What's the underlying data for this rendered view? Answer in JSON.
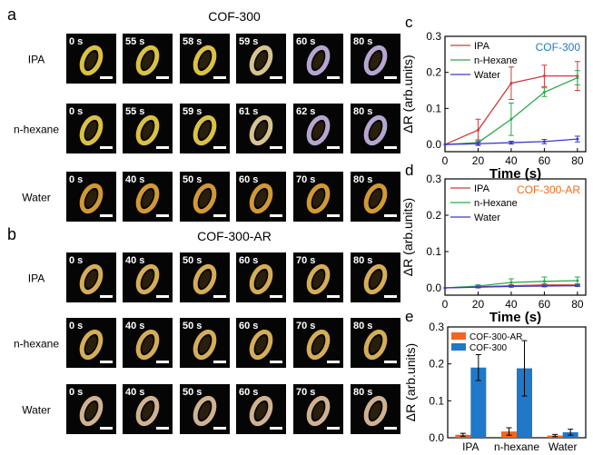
{
  "panel_labels": {
    "a": "a",
    "b": "b",
    "c": "c",
    "d": "d",
    "e": "e"
  },
  "microscopy": {
    "cof300": {
      "title": "COF-300",
      "rows": [
        {
          "label": "IPA",
          "times": [
            "0 s",
            "55 s",
            "58 s",
            "59 s",
            "60 s",
            "80 s"
          ],
          "tint": [
            "#f2d64a",
            "#f2d64a",
            "#f2d64a",
            "#efd8a0",
            "#c9b8e6",
            "#c9b8e6"
          ]
        },
        {
          "label": "n-hexane",
          "times": [
            "0 s",
            "55 s",
            "59 s",
            "61 s",
            "62 s",
            "80 s"
          ],
          "tint": [
            "#f2d64a",
            "#f2d64a",
            "#f2d64a",
            "#efd8a0",
            "#c9b8e6",
            "#c9b8e6"
          ]
        },
        {
          "label": "Water",
          "times": [
            "0 s",
            "40 s",
            "50 s",
            "60 s",
            "70 s",
            "80 s"
          ],
          "tint": [
            "#e8a83a",
            "#e8a83a",
            "#e8a83a",
            "#e8a83a",
            "#e8a83a",
            "#e8a83a"
          ]
        }
      ]
    },
    "cof300ar": {
      "title": "COF-300-AR",
      "rows": [
        {
          "label": "IPA",
          "times": [
            "0 s",
            "40 s",
            "50 s",
            "60 s",
            "70 s",
            "80 s"
          ],
          "tint": [
            "#ecc060",
            "#ecc060",
            "#ecc060",
            "#ecc060",
            "#ecc060",
            "#ecc060"
          ]
        },
        {
          "label": "n-hexane",
          "times": [
            "0 s",
            "40 s",
            "50 s",
            "60 s",
            "70 s",
            "80 s"
          ],
          "tint": [
            "#ecc060",
            "#ecc060",
            "#ecc060",
            "#ecc060",
            "#ecc060",
            "#ecc060"
          ]
        },
        {
          "label": "Water",
          "times": [
            "0 s",
            "40 s",
            "50 s",
            "60 s",
            "70 s",
            "80 s"
          ],
          "tint": [
            "#e7c4a0",
            "#e7c4a0",
            "#e7c4a0",
            "#e7c4a0",
            "#e7c4a0",
            "#e7c4a0"
          ]
        }
      ]
    }
  },
  "chart_data": [
    {
      "id": "c",
      "type": "line",
      "annotation": "COF-300",
      "annotation_color": "#1f78c8",
      "xlabel": "Time (s)",
      "ylabel": "ΔR (arb.units)",
      "xlim": [
        0,
        85
      ],
      "ylim": [
        -0.02,
        0.3
      ],
      "xticks": [
        0,
        20,
        40,
        60,
        80
      ],
      "yticks": [
        0.0,
        0.1,
        0.2,
        0.3
      ],
      "series": [
        {
          "name": "IPA",
          "color": "#d03a3a",
          "x": [
            0,
            20,
            40,
            60,
            80
          ],
          "y": [
            0.0,
            0.04,
            0.17,
            0.19,
            0.19
          ],
          "err": [
            0.0,
            0.03,
            0.045,
            0.03,
            0.04
          ]
        },
        {
          "name": "n-Hexane",
          "color": "#2aa84a",
          "x": [
            0,
            20,
            40,
            60,
            80
          ],
          "y": [
            0.0,
            0.005,
            0.07,
            0.145,
            0.185
          ],
          "err": [
            0.0,
            0.008,
            0.045,
            0.012,
            0.02
          ]
        },
        {
          "name": "Water",
          "color": "#3a3ad0",
          "x": [
            0,
            20,
            40,
            60,
            80
          ],
          "y": [
            0.0,
            0.002,
            0.005,
            0.008,
            0.015
          ],
          "err": [
            0.0,
            0.004,
            0.004,
            0.006,
            0.008
          ]
        }
      ]
    },
    {
      "id": "d",
      "type": "line",
      "annotation": "COF-300-AR",
      "annotation_color": "#f06a1a",
      "xlabel": "Time (s)",
      "ylabel": "ΔR (arb.units)",
      "xlim": [
        0,
        85
      ],
      "ylim": [
        -0.02,
        0.3
      ],
      "xticks": [
        0,
        20,
        40,
        60,
        80
      ],
      "yticks": [
        0.0,
        0.1,
        0.2,
        0.3
      ],
      "series": [
        {
          "name": "IPA",
          "color": "#d03a3a",
          "x": [
            0,
            20,
            40,
            60,
            80
          ],
          "y": [
            0.0,
            0.003,
            0.006,
            0.008,
            0.008
          ],
          "err": [
            0.0,
            0.003,
            0.003,
            0.003,
            0.003
          ]
        },
        {
          "name": "n-Hexane",
          "color": "#2aa84a",
          "x": [
            0,
            20,
            40,
            60,
            80
          ],
          "y": [
            0.0,
            0.005,
            0.015,
            0.018,
            0.02
          ],
          "err": [
            0.0,
            0.004,
            0.01,
            0.012,
            0.01
          ]
        },
        {
          "name": "Water",
          "color": "#3a3ad0",
          "x": [
            0,
            20,
            40,
            60,
            80
          ],
          "y": [
            0.0,
            0.002,
            0.004,
            0.005,
            0.006
          ],
          "err": [
            0.0,
            0.002,
            0.002,
            0.002,
            0.002
          ]
        }
      ]
    },
    {
      "id": "e",
      "type": "bar",
      "ylabel": "ΔR (arb.units)",
      "categories": [
        "IPA",
        "n-hexane",
        "Water"
      ],
      "ylim": [
        0,
        0.3
      ],
      "yticks": [
        0.0,
        0.1,
        0.2,
        0.3
      ],
      "series": [
        {
          "name": "COF-300-AR",
          "color": "#f26522",
          "values": [
            0.008,
            0.017,
            0.006
          ],
          "err": [
            0.004,
            0.01,
            0.003
          ]
        },
        {
          "name": "COF-300",
          "color": "#1f78c8",
          "values": [
            0.19,
            0.188,
            0.015
          ],
          "err": [
            0.035,
            0.075,
            0.008
          ]
        }
      ]
    }
  ]
}
